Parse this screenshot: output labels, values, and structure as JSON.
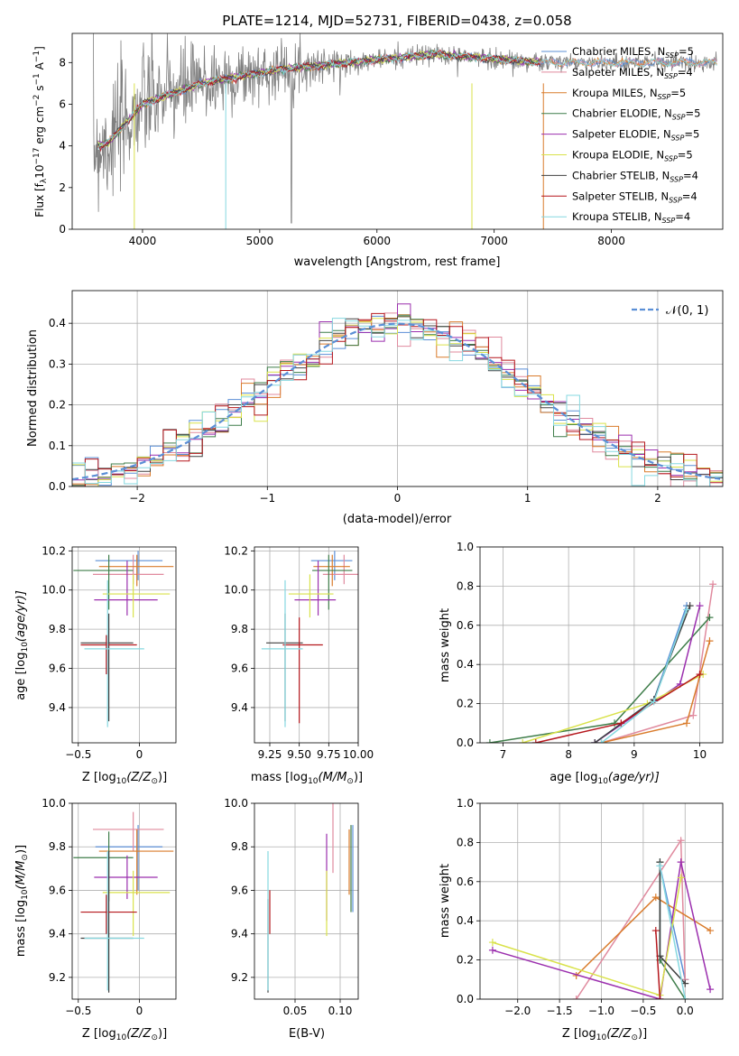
{
  "chart_data": [
    {
      "id": "spectrum",
      "type": "line",
      "title": "PLATE=1214, MJD=52731, FIBERID=0438, z=0.058",
      "xlabel": "wavelength [Angstrom, rest frame]",
      "ylabel": "Flux [f",
      "ylabel_sub": "λ",
      "ylabel_mid": "10",
      "ylabel_sup1": "−17",
      "ylabel_mid2": " erg cm",
      "ylabel_sup2": "−2",
      "ylabel_mid3": " s",
      "ylabel_sup3": "−1",
      "ylabel_mid4": " A",
      "ylabel_sup4": "−1",
      "ylabel_end": "]",
      "xlim": [
        3400,
        8950
      ],
      "ylim": [
        0,
        9.4
      ],
      "xticks": [
        4000,
        5000,
        6000,
        7000,
        8000
      ],
      "yticks": [
        0,
        2,
        4,
        6,
        8
      ],
      "grid": false,
      "legend": "right",
      "series": [
        {
          "name": "Chabrier MILES",
          "nssp": "5",
          "color": "#5b8fd6"
        },
        {
          "name": "Salpeter MILES",
          "nssp": "4",
          "color": "#e08a9e"
        },
        {
          "name": "Kroupa MILES",
          "nssp": "5",
          "color": "#d97b2b"
        },
        {
          "name": "Chabrier ELODIE",
          "nssp": "5",
          "color": "#3f7d4a"
        },
        {
          "name": "Salpeter ELODIE",
          "nssp": "5",
          "color": "#9b2fae"
        },
        {
          "name": "Kroupa ELODIE",
          "nssp": "5",
          "color": "#d9e24a"
        },
        {
          "name": "Chabrier STELIB",
          "nssp": "4",
          "color": "#404040"
        },
        {
          "name": "Salpeter STELIB",
          "nssp": "4",
          "color": "#b5171d"
        },
        {
          "name": "Kroupa STELIB",
          "nssp": "4",
          "color": "#86d8e0"
        }
      ],
      "data_color": "#808080"
    },
    {
      "id": "residuals",
      "type": "line",
      "xlabel": "(data-model)/error",
      "ylabel": "Normed distribution",
      "xlim": [
        -2.5,
        2.5
      ],
      "ylim": [
        0,
        0.48
      ],
      "xticks": [
        -2,
        -1,
        0,
        1,
        2
      ],
      "yticks": [
        0.0,
        0.1,
        0.2,
        0.3,
        0.4
      ],
      "grid": true,
      "legend": "top-right",
      "gauss_label": "𝒩(0, 1)",
      "gauss_color": "#5b8fd6"
    },
    {
      "id": "age-vs-Z",
      "type": "scatter",
      "xlabel": "Z [log",
      "xlabel_sub": "10",
      "xlabel_rest": "(Z/Z",
      "xlabel_sun": "⊙",
      "xlabel_end": ")]",
      "ylabel": "age  [log",
      "ylabel_sub": "10",
      "ylabel_rest": "(age/yr)]",
      "xlim": [
        -0.55,
        0.3
      ],
      "ylim": [
        9.22,
        10.22
      ],
      "xticks": [
        -0.5,
        0.0
      ],
      "yticks": [
        9.4,
        9.6,
        9.8,
        10.0,
        10.2
      ],
      "grid": true
    },
    {
      "id": "age-vs-mass",
      "type": "scatter",
      "xlabel": "mass [log",
      "xlabel_sub": "10",
      "xlabel_rest": "(M/M",
      "xlabel_sun": "⊙",
      "xlabel_end": ")]",
      "xlim": [
        9.12,
        10.0
      ],
      "ylim": [
        9.22,
        10.22
      ],
      "xticks": [
        9.25,
        9.5,
        9.75,
        10.0
      ],
      "xticklabels": [
        "9.25",
        "9.50",
        "9.75",
        "10.00"
      ],
      "yticks": [
        9.4,
        9.6,
        9.8,
        10.0,
        10.2
      ],
      "grid": true
    },
    {
      "id": "massweight-vs-age",
      "type": "line",
      "xlabel": "age  [log",
      "xlabel_sub": "10",
      "xlabel_rest": "(age/yr)]",
      "ylabel": "mass weight",
      "xlim": [
        6.65,
        10.35
      ],
      "ylim": [
        0,
        1.0
      ],
      "xticks": [
        7,
        8,
        9,
        10
      ],
      "yticks": [
        0.0,
        0.2,
        0.4,
        0.6,
        0.8,
        1.0
      ],
      "grid": true
    },
    {
      "id": "mass-vs-Z",
      "type": "scatter",
      "xlabel": "Z [log",
      "xlabel_sub": "10",
      "xlabel_rest": "(Z/Z",
      "xlabel_sun": "⊙",
      "xlabel_end": ")]",
      "ylabel": "mass [log",
      "ylabel_sub": "10",
      "ylabel_rest": "(M/M",
      "ylabel_sun": "⊙",
      "ylabel_end": ")]",
      "xlim": [
        -0.55,
        0.3
      ],
      "ylim": [
        9.1,
        10.0
      ],
      "xticks": [
        -0.5,
        0.0
      ],
      "yticks": [
        9.2,
        9.4,
        9.6,
        9.8,
        10.0
      ],
      "grid": true
    },
    {
      "id": "mass-vs-ebv",
      "type": "scatter",
      "xlabel": "E(B-V)",
      "xlim": [
        0.005,
        0.12
      ],
      "ylim": [
        9.1,
        10.0
      ],
      "xticks": [
        0.05,
        0.1
      ],
      "xticklabels": [
        "0.05",
        "0.10"
      ],
      "yticks": [
        9.2,
        9.4,
        9.6,
        9.8,
        10.0
      ],
      "grid": true
    },
    {
      "id": "massweight-vs-Z",
      "type": "line",
      "xlabel": "Z [log",
      "xlabel_sub": "10",
      "xlabel_rest": "(Z/Z",
      "xlabel_sun": "⊙",
      "xlabel_end": ")]",
      "ylabel": "mass weight",
      "xlim": [
        -2.45,
        0.45
      ],
      "ylim": [
        0,
        1.0
      ],
      "xticks": [
        -2.0,
        -1.5,
        -1.0,
        -0.5,
        0.0
      ],
      "xticklabels": [
        "−2.0",
        "−1.5",
        "−1.0",
        "−0.5",
        "0.0"
      ],
      "yticks": [
        0.0,
        0.2,
        0.4,
        0.6,
        0.8,
        1.0
      ],
      "grid": true
    }
  ]
}
